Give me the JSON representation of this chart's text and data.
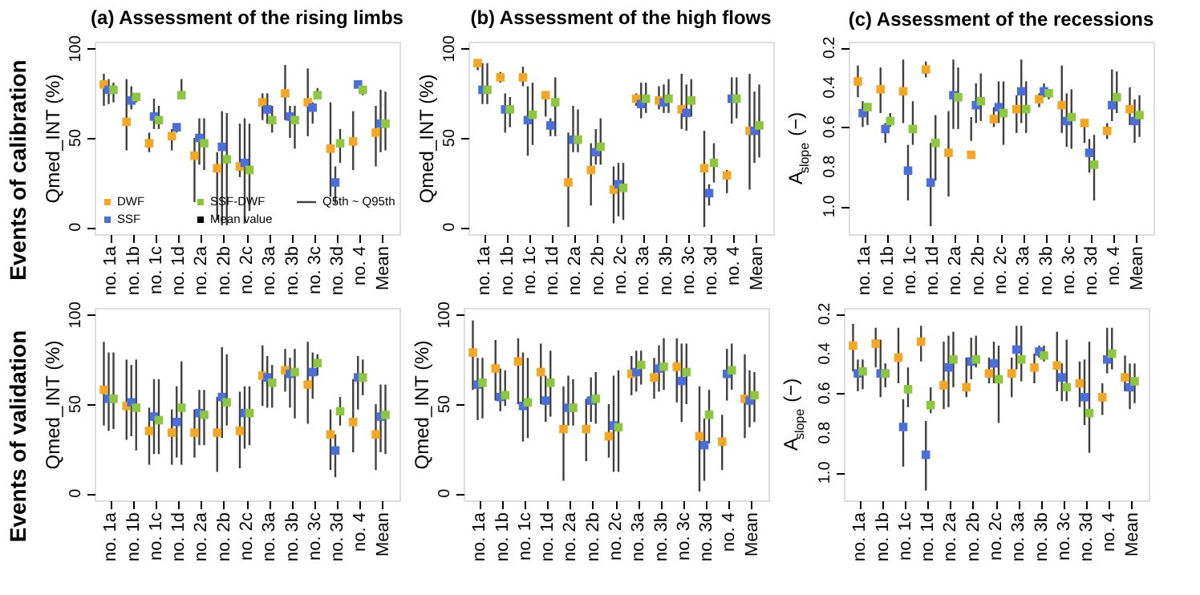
{
  "chart_data": [
    {
      "type": "scatter",
      "title": "(a) Assessment of the rising limbs",
      "ylabel": "Qmed_INT (%)",
      "categories": [
        "no. 1a",
        "no. 1b",
        "no. 1c",
        "no. 1d",
        "no. 2a",
        "no. 2b",
        "no. 2c",
        "no. 3a",
        "no. 3b",
        "no. 3c",
        "no. 3d",
        "no. 4",
        "Mean"
      ],
      "ylim": [
        -4,
        104
      ],
      "yticks": [
        0,
        50,
        100
      ],
      "marker": "square",
      "grid": false,
      "legend": "bottom",
      "annotations": [
        "Events of calibration",
        "Q5th ~ Q95th"
      ],
      "series": [
        {
          "name": "DWF",
          "color": "#f5a623",
          "values": [
            80,
            59,
            47,
            51,
            40,
            33,
            34,
            70,
            75,
            70,
            44,
            48,
            53
          ],
          "errors": [
            [
              68,
              86
            ],
            [
              43,
              83
            ],
            [
              42,
              53
            ],
            [
              43,
              55
            ],
            [
              14,
              50
            ],
            [
              4,
              42
            ],
            [
              28,
              58
            ],
            [
              60,
              75
            ],
            [
              60,
              91
            ],
            [
              51,
              89
            ],
            [
              17,
              70
            ],
            [
              32,
              65
            ],
            [
              34,
              68
            ]
          ]
        },
        {
          "name": "SSF",
          "color": "#4a6fdc",
          "values": [
            77,
            71,
            62,
            56,
            50,
            45,
            36,
            66,
            62,
            67,
            25,
            80,
            58
          ],
          "errors": [
            [
              69,
              83
            ],
            [
              66,
              79
            ],
            [
              55,
              72
            ],
            [
              53,
              58
            ],
            [
              35,
              61
            ],
            [
              1,
              65
            ],
            [
              2,
              61
            ],
            [
              58,
              75
            ],
            [
              50,
              68
            ],
            [
              58,
              70
            ],
            [
              13,
              34
            ],
            null,
            [
              42,
              77
            ]
          ]
        },
        {
          "name": "SSF-DWF",
          "color": "#8dc63f",
          "values": [
            77,
            73,
            60,
            74,
            47,
            38,
            32,
            60,
            60,
            74,
            47,
            77,
            58
          ],
          "errors": [
            [
              70,
              81
            ],
            [
              70,
              75
            ],
            [
              55,
              68
            ],
            [
              72,
              83
            ],
            [
              32,
              61
            ],
            [
              1,
              64
            ],
            [
              9,
              58
            ],
            [
              53,
              68
            ],
            [
              44,
              68
            ],
            [
              72,
              78
            ],
            [
              36,
              55
            ],
            [
              74,
              79
            ],
            [
              43,
              76
            ]
          ]
        },
        {
          "name": "Mean value",
          "color": "#000000",
          "values": [
            null,
            null,
            null,
            null,
            null,
            null,
            null,
            null,
            null,
            null,
            null,
            null,
            null
          ]
        }
      ]
    },
    {
      "type": "scatter",
      "title": "(b) Assessment of the high flows",
      "ylabel": "Qmed_INT (%)",
      "categories": [
        "no. 1a",
        "no. 1b",
        "no. 1c",
        "no. 1d",
        "no. 2a",
        "no. 2b",
        "no. 2c",
        "no. 3a",
        "no. 3b",
        "no. 3c",
        "no. 3d",
        "no. 4",
        "Mean"
      ],
      "ylim": [
        -4,
        104
      ],
      "yticks": [
        0,
        50,
        100
      ],
      "marker": "square",
      "grid": false,
      "series": [
        {
          "color": "#f5a623",
          "values": [
            92,
            84,
            84,
            74,
            25,
            32,
            21,
            72,
            71,
            66,
            33,
            29,
            54
          ],
          "errors": [
            [
              88,
              94
            ],
            [
              81,
              87
            ],
            [
              79,
              90
            ],
            [
              62,
              76
            ],
            [
              0,
              53
            ],
            [
              12,
              47
            ],
            [
              2,
              34
            ],
            [
              68,
              75
            ],
            [
              66,
              79
            ],
            [
              55,
              86
            ],
            [
              0,
              54
            ],
            [
              19,
              32
            ],
            [
              21,
              86
            ]
          ]
        },
        {
          "color": "#4a6fdc",
          "values": [
            77,
            66,
            60,
            57,
            49,
            42,
            24,
            69,
            70,
            64,
            19,
            72,
            54
          ],
          "errors": [
            [
              69,
              92
            ],
            [
              53,
              75
            ],
            [
              40,
              79
            ],
            [
              51,
              61
            ],
            [
              42,
              68
            ],
            [
              35,
              55
            ],
            [
              6,
              36
            ],
            [
              61,
              81
            ],
            [
              64,
              80
            ],
            [
              54,
              80
            ],
            [
              12,
              24
            ],
            [
              58,
              84
            ],
            [
              36,
              76
            ]
          ]
        },
        {
          "color": "#8dc63f",
          "values": [
            77,
            66,
            63,
            70,
            49,
            45,
            22,
            72,
            72,
            71,
            36,
            72,
            57
          ],
          "errors": [
            [
              69,
              92
            ],
            [
              56,
              73
            ],
            [
              46,
              81
            ],
            [
              51,
              84
            ],
            [
              42,
              66
            ],
            [
              35,
              61
            ],
            [
              4,
              36
            ],
            [
              64,
              81
            ],
            [
              64,
              83
            ],
            [
              62,
              83
            ],
            [
              25,
              47
            ],
            [
              61,
              84
            ],
            [
              39,
              80
            ]
          ]
        }
      ]
    },
    {
      "type": "scatter",
      "title": "(c) Assessment of the recessions",
      "ylabel": "A$_{slope}$ (−)",
      "categories": [
        "no. 1a",
        "no. 1b",
        "no. 1c",
        "no. 1d",
        "no. 2a",
        "no. 2b",
        "no. 2c",
        "no. 3a",
        "no. 3b",
        "no. 3c",
        "no. 3d",
        "no. 4",
        "Mean"
      ],
      "ylim": [
        1.14,
        0.17
      ],
      "yticks": [
        {
          "value": 0.2,
          "label": "0.2"
        },
        {
          "value": 0.4,
          "label": "0.4"
        },
        {
          "value": 0.6,
          "label": "0.6"
        },
        {
          "value": 0.8,
          "label": "0.8"
        },
        {
          "value": 1.0,
          "label": "1.0"
        }
      ],
      "marker": "square",
      "grid": false,
      "series": [
        {
          "color": "#f5a623",
          "values": [
            0.37,
            0.41,
            0.42,
            0.31,
            0.73,
            0.74,
            0.56,
            0.51,
            0.46,
            0.49,
            0.58,
            0.62,
            0.51
          ],
          "errors": [
            [
              0.29,
              0.45
            ],
            [
              0.3,
              0.53
            ],
            [
              0.26,
              0.58
            ],
            [
              0.27,
              0.35
            ],
            [
              0.52,
              0.95
            ],
            [
              0.55,
              0.67
            ],
            [
              0.5,
              0.6
            ],
            [
              0.44,
              0.63
            ],
            [
              0.43,
              0.5
            ],
            [
              0.29,
              0.63
            ],
            [
              0.57,
              0.68
            ],
            [
              0.58,
              0.66
            ],
            [
              0.4,
              0.59
            ]
          ]
        },
        {
          "color": "#4a6fdc",
          "values": [
            0.53,
            0.61,
            0.82,
            0.88,
            0.44,
            0.49,
            0.5,
            0.42,
            0.42,
            0.57,
            0.73,
            0.49,
            0.57
          ],
          "errors": [
            [
              0.47,
              0.6
            ],
            [
              0.58,
              0.68
            ],
            [
              0.69,
              0.97
            ],
            [
              0.68,
              1.1
            ],
            [
              0.26,
              0.61
            ],
            [
              0.38,
              0.58
            ],
            [
              0.37,
              0.58
            ],
            [
              0.26,
              0.58
            ],
            [
              0.38,
              0.45
            ],
            [
              0.43,
              0.7
            ],
            [
              0.66,
              0.83
            ],
            [
              0.31,
              0.57
            ],
            [
              0.46,
              0.68
            ]
          ]
        },
        {
          "color": "#8dc63f",
          "values": [
            0.5,
            0.57,
            0.61,
            0.68,
            0.45,
            0.47,
            0.53,
            0.51,
            0.43,
            0.55,
            0.79,
            0.45,
            0.54
          ],
          "errors": [
            [
              0.48,
              0.59
            ],
            [
              0.53,
              0.6
            ],
            [
              0.47,
              0.69
            ],
            [
              0.54,
              0.87
            ],
            [
              0.3,
              0.61
            ],
            [
              0.33,
              0.57
            ],
            [
              0.37,
              0.69
            ],
            [
              0.37,
              0.63
            ],
            [
              0.41,
              0.46
            ],
            [
              0.41,
              0.71
            ],
            [
              0.64,
              0.97
            ],
            [
              0.32,
              0.53
            ],
            [
              0.44,
              0.65
            ]
          ]
        }
      ]
    },
    {
      "type": "scatter",
      "ylabel": "Qmed_INT (%)",
      "categories": [
        "no. 1a",
        "no. 1b",
        "no. 1c",
        "no. 1d",
        "no. 2a",
        "no. 2b",
        "no. 2c",
        "no. 3a",
        "no. 3b",
        "no. 3c",
        "no. 3d",
        "no. 4",
        "Mean"
      ],
      "ylim": [
        -4,
        104
      ],
      "yticks": [
        0,
        50,
        100
      ],
      "marker": "square",
      "grid": false,
      "annotations": [
        "Events of validation"
      ],
      "series": [
        {
          "color": "#f5a623",
          "values": [
            58,
            49,
            35,
            34,
            34,
            34,
            35,
            66,
            69,
            61,
            33,
            40,
            33
          ],
          "errors": [
            [
              38,
              85
            ],
            [
              30,
              75
            ],
            [
              16,
              48
            ],
            [
              16,
              47
            ],
            [
              20,
              47
            ],
            [
              12,
              54
            ],
            [
              14,
              57
            ],
            [
              49,
              83
            ],
            [
              57,
              81
            ],
            [
              39,
              85
            ],
            [
              13,
              47
            ],
            [
              23,
              64
            ],
            [
              13,
              50
            ]
          ]
        },
        {
          "color": "#4a6fdc",
          "values": [
            53,
            51,
            43,
            40,
            45,
            54,
            45,
            65,
            67,
            68,
            24,
            65,
            43
          ],
          "errors": [
            [
              35,
              79
            ],
            [
              32,
              72
            ],
            [
              22,
              64
            ],
            [
              20,
              60
            ],
            [
              27,
              58
            ],
            [
              31,
              82
            ],
            [
              25,
              60
            ],
            [
              48,
              77
            ],
            [
              48,
              76
            ],
            [
              53,
              79
            ],
            [
              9,
              33
            ],
            [
              47,
              77
            ],
            [
              23,
              61
            ]
          ]
        },
        {
          "color": "#8dc63f",
          "values": [
            53,
            48,
            41,
            48,
            44,
            51,
            45,
            62,
            68,
            73,
            46,
            65,
            44
          ],
          "errors": [
            [
              36,
              79
            ],
            [
              24,
              75
            ],
            [
              22,
              64
            ],
            [
              16,
              74
            ],
            [
              27,
              58
            ],
            [
              38,
              78
            ],
            [
              27,
              60
            ],
            [
              48,
              72
            ],
            [
              42,
              81
            ],
            [
              66,
              78
            ],
            [
              38,
              54
            ],
            [
              55,
              75
            ],
            [
              22,
              61
            ]
          ]
        }
      ]
    },
    {
      "type": "scatter",
      "ylabel": "Qmed_INT (%)",
      "categories": [
        "no. 1a",
        "no. 1b",
        "no. 1c",
        "no. 1d",
        "no. 2a",
        "no. 2b",
        "no. 2c",
        "no. 3a",
        "no. 3b",
        "no. 3c",
        "no. 3d",
        "no. 4",
        "Mean"
      ],
      "ylim": [
        -4,
        104
      ],
      "yticks": [
        0,
        50,
        100
      ],
      "marker": "square",
      "grid": false,
      "series": [
        {
          "color": "#f5a623",
          "values": [
            79,
            70,
            74,
            68,
            36,
            36,
            32,
            67,
            65,
            71,
            32,
            29,
            53
          ],
          "errors": [
            [
              58,
              97
            ],
            [
              52,
              86
            ],
            [
              50,
              87
            ],
            [
              50,
              84
            ],
            [
              7,
              60
            ],
            [
              18,
              53
            ],
            [
              20,
              50
            ],
            [
              55,
              77
            ],
            [
              53,
              76
            ],
            [
              51,
              87
            ],
            [
              1,
              60
            ],
            [
              13,
              44
            ],
            [
              31,
              78
            ]
          ]
        },
        {
          "color": "#4a6fdc",
          "values": [
            61,
            54,
            49,
            52,
            48,
            52,
            38,
            68,
            70,
            63,
            27,
            67,
            52
          ],
          "errors": [
            [
              41,
              76
            ],
            [
              46,
              70
            ],
            [
              29,
              79
            ],
            [
              40,
              66
            ],
            [
              38,
              66
            ],
            [
              40,
              65
            ],
            [
              12,
              66
            ],
            [
              57,
              80
            ],
            [
              57,
              83
            ],
            [
              40,
              84
            ],
            [
              7,
              42
            ],
            [
              52,
              81
            ],
            [
              37,
              69
            ]
          ]
        },
        {
          "color": "#8dc63f",
          "values": [
            62,
            55,
            51,
            62,
            48,
            53,
            37,
            72,
            71,
            68,
            44,
            69,
            55
          ],
          "errors": [
            [
              42,
              76
            ],
            [
              49,
              69
            ],
            [
              31,
              76
            ],
            [
              43,
              80
            ],
            [
              38,
              64
            ],
            [
              39,
              68
            ],
            [
              12,
              69
            ],
            [
              61,
              80
            ],
            [
              58,
              87
            ],
            [
              50,
              84
            ],
            [
              28,
              58
            ],
            [
              58,
              84
            ],
            [
              40,
              68
            ]
          ]
        }
      ]
    },
    {
      "type": "scatter",
      "ylabel": "A$_{slope}$ (−)",
      "categories": [
        "no. 1a",
        "no. 1b",
        "no. 1c",
        "no. 1d",
        "no. 2a",
        "no. 2b",
        "no. 2c",
        "no. 3a",
        "no. 3b",
        "no. 3c",
        "no. 3d",
        "no. 4",
        "Mean"
      ],
      "ylim": [
        1.14,
        0.17
      ],
      "yticks": [
        {
          "value": 0.2,
          "label": "0.2"
        },
        {
          "value": 0.4,
          "label": "0.4"
        },
        {
          "value": 0.6,
          "label": "0.6"
        },
        {
          "value": 0.8,
          "label": "0.8"
        },
        {
          "value": 1.0,
          "label": "1.0"
        }
      ],
      "marker": "square",
      "grid": false,
      "series": [
        {
          "color": "#f5a623",
          "values": [
            0.36,
            0.35,
            0.42,
            0.34,
            0.56,
            0.57,
            0.5,
            0.5,
            0.47,
            0.46,
            0.55,
            0.62,
            0.52
          ],
          "errors": [
            [
              0.25,
              0.49
            ],
            [
              0.27,
              0.47
            ],
            [
              0.27,
              0.55
            ],
            [
              0.26,
              0.44
            ],
            [
              0.34,
              0.68
            ],
            [
              0.42,
              0.62
            ],
            [
              0.42,
              0.55
            ],
            [
              0.42,
              0.62
            ],
            [
              0.4,
              0.55
            ],
            [
              0.29,
              0.59
            ],
            [
              0.44,
              0.67
            ],
            [
              0.55,
              0.71
            ],
            [
              0.41,
              0.59
            ]
          ]
        },
        {
          "color": "#4a6fdc",
          "values": [
            0.5,
            0.5,
            0.77,
            0.91,
            0.47,
            0.44,
            0.45,
            0.38,
            0.39,
            0.52,
            0.62,
            0.43,
            0.57
          ],
          "errors": [
            [
              0.43,
              0.59
            ],
            [
              0.33,
              0.62
            ],
            [
              0.63,
              0.97
            ],
            [
              0.74,
              1.09
            ],
            [
              0.31,
              0.67
            ],
            [
              0.32,
              0.53
            ],
            [
              0.34,
              0.55
            ],
            [
              0.26,
              0.48
            ],
            [
              0.36,
              0.42
            ],
            [
              0.45,
              0.64
            ],
            [
              0.43,
              0.76
            ],
            [
              0.27,
              0.5
            ],
            [
              0.45,
              0.68
            ]
          ]
        },
        {
          "color": "#8dc63f",
          "values": [
            0.49,
            0.5,
            0.58,
            0.66,
            0.43,
            0.43,
            0.53,
            0.43,
            0.41,
            0.57,
            0.7,
            0.4,
            0.54
          ],
          "errors": [
            [
              0.43,
              0.58
            ],
            [
              0.45,
              0.57
            ],
            [
              0.47,
              0.67
            ],
            [
              0.57,
              0.7
            ],
            [
              0.29,
              0.57
            ],
            [
              0.31,
              0.47
            ],
            [
              0.36,
              0.75
            ],
            [
              0.26,
              0.54
            ],
            [
              0.36,
              0.44
            ],
            [
              0.33,
              0.64
            ],
            [
              0.34,
              0.9
            ],
            [
              0.27,
              0.48
            ],
            [
              0.45,
              0.65
            ]
          ]
        }
      ]
    }
  ]
}
